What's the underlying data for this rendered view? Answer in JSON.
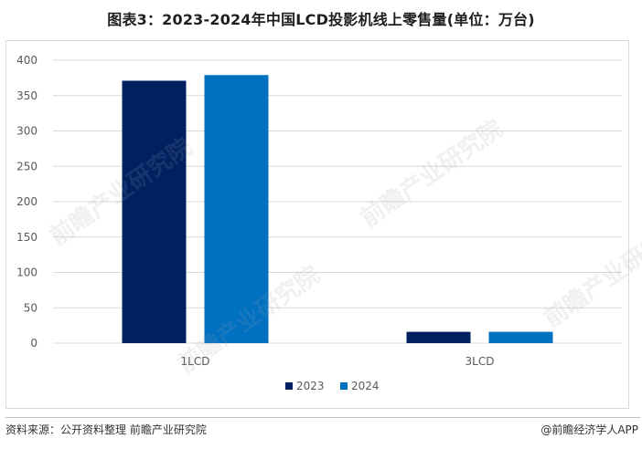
{
  "title": "图表3：2023-2024年中国LCD投影机线上零售量(单位：万台)",
  "source": "资料来源：公开资料整理 前瞻产业研究院",
  "credit": "@前瞻经济学人APP",
  "watermark": "前瞻产业研究院",
  "colors": {
    "series_2023": "#002060",
    "series_2024": "#0070c0",
    "grid": "#d9d9d9",
    "axis_text": "#595959"
  },
  "chart_data": {
    "type": "bar",
    "categories": [
      "1LCD",
      "3LCD"
    ],
    "series": [
      {
        "name": "2023",
        "values": [
          371,
          16
        ]
      },
      {
        "name": "2024",
        "values": [
          379,
          16
        ]
      }
    ],
    "ylim": [
      0,
      400
    ],
    "yticks": [
      0,
      50,
      100,
      150,
      200,
      250,
      300,
      350,
      400
    ],
    "grid": true,
    "legend_position": "bottom-center",
    "xlabel": "",
    "ylabel": ""
  }
}
